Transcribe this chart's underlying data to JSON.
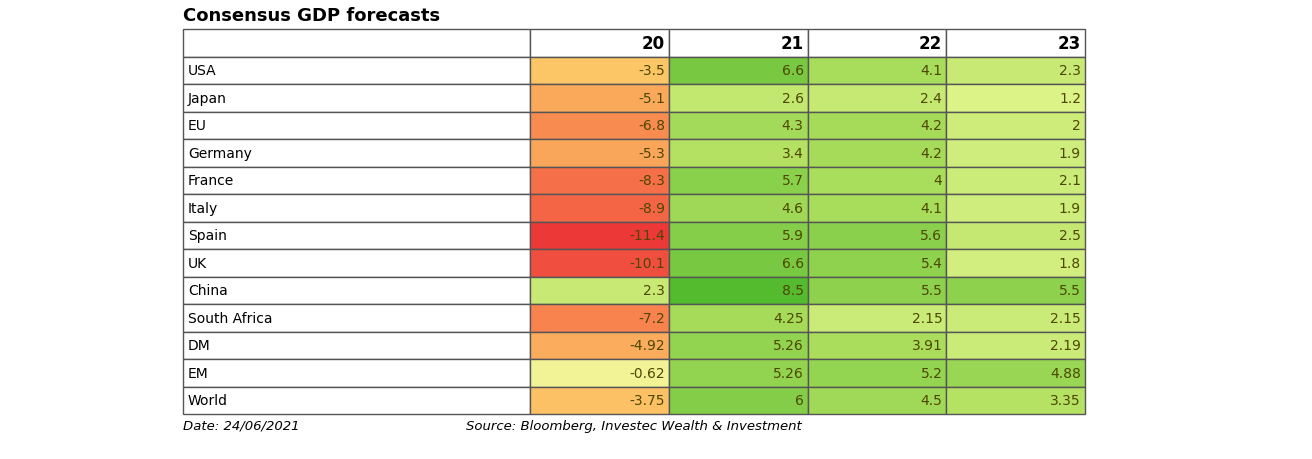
{
  "title": "Consensus GDP forecasts",
  "year_headers": [
    "20",
    "21",
    "22",
    "23"
  ],
  "rows": [
    {
      "country": "USA",
      "vals": [
        -3.5,
        6.6,
        4.1,
        2.3
      ]
    },
    {
      "country": "Japan",
      "vals": [
        -5.1,
        2.6,
        2.4,
        1.2
      ]
    },
    {
      "country": "EU",
      "vals": [
        -6.8,
        4.3,
        4.2,
        2.0
      ]
    },
    {
      "country": "Germany",
      "vals": [
        -5.3,
        3.4,
        4.2,
        1.9
      ]
    },
    {
      "country": "France",
      "vals": [
        -8.3,
        5.7,
        4.0,
        2.1
      ]
    },
    {
      "country": "Italy",
      "vals": [
        -8.9,
        4.6,
        4.1,
        1.9
      ]
    },
    {
      "country": "Spain",
      "vals": [
        -11.4,
        5.9,
        5.6,
        2.5
      ]
    },
    {
      "country": "UK",
      "vals": [
        -10.1,
        6.6,
        5.4,
        1.8
      ]
    },
    {
      "country": "China",
      "vals": [
        2.3,
        8.5,
        5.5,
        5.5
      ]
    },
    {
      "country": "South Africa",
      "vals": [
        -7.2,
        4.25,
        2.15,
        2.15
      ]
    },
    {
      "country": "DM",
      "vals": [
        -4.92,
        5.26,
        3.91,
        2.19
      ]
    },
    {
      "country": "EM",
      "vals": [
        -0.62,
        5.26,
        5.2,
        4.88
      ]
    },
    {
      "country": "World",
      "vals": [
        -3.75,
        6.0,
        4.5,
        3.35
      ]
    }
  ],
  "footer_left": "Date: 24/06/2021",
  "footer_right": "Source: Bloomberg, Investec Wealth & Investment",
  "val_min": -11.4,
  "val_max": 8.5,
  "color_stops": [
    [
      0.0,
      [
        0.93,
        0.22,
        0.22
      ]
    ],
    [
      0.2,
      [
        0.97,
        0.5,
        0.3
      ]
    ],
    [
      0.4,
      [
        0.99,
        0.78,
        0.4
      ]
    ],
    [
      0.52,
      [
        0.97,
        0.95,
        0.6
      ]
    ],
    [
      0.62,
      [
        0.88,
        0.96,
        0.55
      ]
    ],
    [
      0.75,
      [
        0.7,
        0.88,
        0.38
      ]
    ],
    [
      1.0,
      [
        0.33,
        0.73,
        0.18
      ]
    ]
  ],
  "text_color": "#4d4700",
  "border_color": "#555555",
  "background_color": "#ffffff",
  "header_text_color": "#000000",
  "country_text_color": "#000000",
  "title_fontsize": 13,
  "header_fontsize": 12,
  "cell_fontsize": 10,
  "footer_fontsize": 9.5
}
